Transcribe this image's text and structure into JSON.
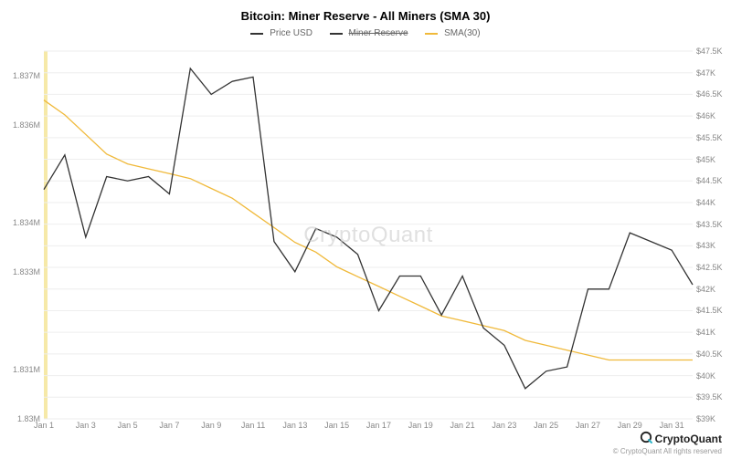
{
  "title": "Bitcoin: Miner Reserve - All Miners (SMA 30)",
  "watermark_text": "CryptoQuant",
  "legend": [
    {
      "label": "Price USD",
      "color": "#333333",
      "strike": false
    },
    {
      "label": "Miner Reserve",
      "color": "#333333",
      "strike": true
    },
    {
      "label": "SMA(30)",
      "color": "#f0b93a",
      "strike": false
    }
  ],
  "footer": {
    "brand": "CryptoQuant",
    "copyright": "© CryptoQuant All rights reserved"
  },
  "chart": {
    "type": "line",
    "background_color": "#ffffff",
    "grid_color": "#eeeeee",
    "watermark_color": "#cccccc",
    "start_band_color": "#f6e9a8",
    "title_fontsize": 13,
    "axis_label_fontsize": 9,
    "x": {
      "ticks": [
        "Jan 1",
        "Jan 3",
        "Jan 5",
        "Jan 7",
        "Jan 9",
        "Jan 11",
        "Jan 13",
        "Jan 15",
        "Jan 17",
        "Jan 19",
        "Jan 21",
        "Jan 23",
        "Jan 25",
        "Jan 27",
        "Jan 29",
        "Jan 31"
      ],
      "range_days": 31
    },
    "y_left": {
      "min": 1.83,
      "max": 1.8375,
      "ticks": [
        {
          "v": 1.83,
          "label": "1.83M"
        },
        {
          "v": 1.831,
          "label": "1.831M"
        },
        {
          "v": 1.833,
          "label": "1.833M"
        },
        {
          "v": 1.834,
          "label": "1.834M"
        },
        {
          "v": 1.836,
          "label": "1.836M"
        },
        {
          "v": 1.837,
          "label": "1.837M"
        }
      ]
    },
    "y_right": {
      "min": 39000,
      "max": 47500,
      "ticks": [
        {
          "v": 39000,
          "label": "$39K"
        },
        {
          "v": 39500,
          "label": "$39.5K"
        },
        {
          "v": 40000,
          "label": "$40K"
        },
        {
          "v": 40500,
          "label": "$40.5K"
        },
        {
          "v": 41000,
          "label": "$41K"
        },
        {
          "v": 41500,
          "label": "$41.5K"
        },
        {
          "v": 42000,
          "label": "$42K"
        },
        {
          "v": 42500,
          "label": "$42.5K"
        },
        {
          "v": 43000,
          "label": "$43K"
        },
        {
          "v": 43500,
          "label": "$43.5K"
        },
        {
          "v": 44000,
          "label": "$44K"
        },
        {
          "v": 44500,
          "label": "$44.5K"
        },
        {
          "v": 45000,
          "label": "$45K"
        },
        {
          "v": 45500,
          "label": "$45.5K"
        },
        {
          "v": 46000,
          "label": "$46K"
        },
        {
          "v": 46500,
          "label": "$46.5K"
        },
        {
          "v": 47000,
          "label": "$47K"
        },
        {
          "v": 47500,
          "label": "$47.5K"
        }
      ]
    },
    "series": {
      "price": {
        "axis": "right",
        "color": "#333333",
        "line_width": 1.3,
        "points": [
          [
            1,
            44300
          ],
          [
            2,
            45100
          ],
          [
            3,
            43200
          ],
          [
            4,
            44600
          ],
          [
            5,
            44500
          ],
          [
            6,
            44600
          ],
          [
            7,
            44200
          ],
          [
            8,
            47100
          ],
          [
            9,
            46500
          ],
          [
            10,
            46800
          ],
          [
            11,
            46900
          ],
          [
            12,
            43100
          ],
          [
            13,
            42400
          ],
          [
            14,
            43400
          ],
          [
            15,
            43200
          ],
          [
            16,
            42800
          ],
          [
            17,
            41500
          ],
          [
            18,
            42300
          ],
          [
            19,
            42300
          ],
          [
            20,
            41400
          ],
          [
            21,
            42300
          ],
          [
            22,
            41100
          ],
          [
            23,
            40700
          ],
          [
            24,
            39700
          ],
          [
            25,
            40100
          ],
          [
            26,
            40200
          ],
          [
            27,
            42000
          ],
          [
            28,
            42000
          ],
          [
            29,
            43300
          ],
          [
            30,
            43100
          ],
          [
            31,
            42900
          ],
          [
            32,
            42100
          ]
        ]
      },
      "sma30": {
        "axis": "left",
        "color": "#f0b93a",
        "line_width": 1.3,
        "points": [
          [
            1,
            1.8365
          ],
          [
            2,
            1.8362
          ],
          [
            3,
            1.8358
          ],
          [
            4,
            1.8354
          ],
          [
            5,
            1.8352
          ],
          [
            6,
            1.8351
          ],
          [
            7,
            1.835
          ],
          [
            8,
            1.8349
          ],
          [
            9,
            1.8347
          ],
          [
            10,
            1.8345
          ],
          [
            11,
            1.8342
          ],
          [
            12,
            1.8339
          ],
          [
            13,
            1.8336
          ],
          [
            14,
            1.8334
          ],
          [
            15,
            1.8331
          ],
          [
            16,
            1.8329
          ],
          [
            17,
            1.8327
          ],
          [
            18,
            1.8325
          ],
          [
            19,
            1.8323
          ],
          [
            20,
            1.8321
          ],
          [
            21,
            1.832
          ],
          [
            22,
            1.8319
          ],
          [
            23,
            1.8318
          ],
          [
            24,
            1.8316
          ],
          [
            25,
            1.8315
          ],
          [
            26,
            1.8314
          ],
          [
            27,
            1.8313
          ],
          [
            28,
            1.8312
          ],
          [
            29,
            1.8312
          ],
          [
            30,
            1.8312
          ],
          [
            31,
            1.8312
          ],
          [
            32,
            1.8312
          ]
        ]
      }
    }
  }
}
